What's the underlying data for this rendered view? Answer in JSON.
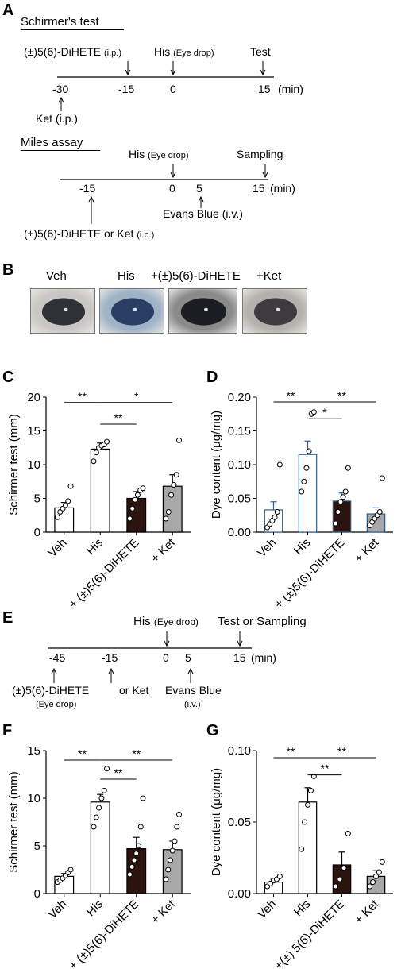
{
  "panel_letters": [
    "A",
    "B",
    "C",
    "D",
    "E",
    "F",
    "G"
  ],
  "panel_a": {
    "schirmer": {
      "heading": "Schirmer's test",
      "drug_label": "(±)5(6)-DiHETE",
      "drug_route": "(i.p.)",
      "his_label": "His",
      "his_route": "(Eye drop)",
      "test_label": "Test",
      "ticks": [
        "-30",
        "-15",
        "0",
        "15"
      ],
      "unit": "(min)",
      "ket_label": "Ket (i.p.)"
    },
    "miles": {
      "heading": "Miles assay",
      "his_label": "His",
      "his_route": "(Eye drop)",
      "sampling_label": "Sampling",
      "ticks": [
        "-15",
        "0",
        "5",
        "15"
      ],
      "unit": "(min)",
      "evans_label": "Evans Blue (i.v.)",
      "pretreat_label": "(±)5(6)-DiHETE or Ket",
      "pretreat_route": "(i.p.)"
    }
  },
  "panel_b": {
    "labels": [
      "Veh",
      "His",
      "+(±)5(6)-DiHETE",
      "+Ket"
    ],
    "eye_colors": {
      "veh_bg": "#c9c7c4",
      "veh_eye": "#303137",
      "his_bg": "#9fb3c6",
      "his_eye": "#2a3d63",
      "dihete_bg": "#8a8a8a",
      "dihete_eye": "#1c1d22",
      "ket_bg": "#b4b1ad",
      "ket_eye": "#3d3b40"
    }
  },
  "panel_e": {
    "his_label": "His",
    "his_route": "(Eye drop)",
    "test_label": "Test or Sampling",
    "ticks": [
      "-45",
      "-15",
      "0",
      "5",
      "15"
    ],
    "unit": "(min)",
    "drug_label": "(±)5(6)-DiHETE",
    "drug_route": "(Eye drop)",
    "or_ket": "or Ket",
    "evans_label": "Evans Blue",
    "evans_route": "(i.v.)"
  },
  "chart_data": [
    {
      "id": "C",
      "type": "bar",
      "ylabel": "Schirmer test (mm)",
      "categories": [
        "Veh",
        "His",
        "+ (±)5(6)-DiHETE",
        "+ Ket"
      ],
      "yticks": [
        "0",
        "5",
        "10",
        "15",
        "20"
      ],
      "ylim": [
        0,
        20
      ],
      "values": [
        3.6,
        12.3,
        5.0,
        6.8
      ],
      "sem": [
        0.8,
        0.9,
        1.0,
        1.7
      ],
      "points": [
        [
          2.2,
          3.0,
          3.5,
          4.0,
          4.6,
          6.8
        ],
        [
          10.5,
          11.8,
          12.5,
          12.8,
          13.0,
          13.4
        ],
        [
          2.0,
          3.5,
          4.8,
          5.5,
          6.2,
          6.5
        ],
        [
          2.0,
          3.0,
          5.5,
          7.0,
          8.5,
          13.6
        ]
      ],
      "bar_colors": [
        "#ffffff",
        "#ffffff",
        "#2b1410",
        "#a8a8a8"
      ],
      "bar_edges": [
        "#000000",
        "#000000",
        "#000000",
        "#000000"
      ],
      "significance": [
        {
          "from": 0,
          "to": 1,
          "label": "**",
          "y": 19.2
        },
        {
          "from": 1,
          "to": 3,
          "label": "*",
          "y": 19.2
        },
        {
          "from": 1,
          "to": 2,
          "label": "**",
          "y": 16.0
        }
      ]
    },
    {
      "id": "D",
      "type": "bar",
      "ylabel": "Dye content (μg/mg)",
      "categories": [
        "Veh",
        "His",
        "+ (±)5(6)-DiHETE",
        "+ Ket"
      ],
      "yticks": [
        "0.00",
        "0.05",
        "0.10",
        "0.15",
        "0.20"
      ],
      "ylim": [
        0,
        0.2
      ],
      "values": [
        0.033,
        0.115,
        0.046,
        0.027
      ],
      "sem": [
        0.012,
        0.02,
        0.012,
        0.009
      ],
      "points": [
        [
          0.007,
          0.012,
          0.017,
          0.022,
          0.03,
          0.1
        ],
        [
          0.06,
          0.075,
          0.095,
          0.12,
          0.175,
          0.178
        ],
        [
          0.013,
          0.03,
          0.045,
          0.052,
          0.06,
          0.095
        ],
        [
          0.01,
          0.015,
          0.02,
          0.025,
          0.03,
          0.08
        ]
      ],
      "bar_colors": [
        "#ffffff",
        "#ffffff",
        "#2b1410",
        "#a8a8a8"
      ],
      "bar_edges": [
        "#2e5d8e",
        "#2e5d8e",
        "#2e5d8e",
        "#2e5d8e"
      ],
      "significance": [
        {
          "from": 0,
          "to": 1,
          "label": "**",
          "y": 0.193
        },
        {
          "from": 1,
          "to": 3,
          "label": "**",
          "y": 0.193
        },
        {
          "from": 1,
          "to": 2,
          "label": "*",
          "y": 0.168
        }
      ]
    },
    {
      "id": "F",
      "type": "bar",
      "ylabel": "Schirmer test (mm)",
      "categories": [
        "Veh",
        "His",
        "+ (±)5(6)-DiHETE",
        "+ Ket"
      ],
      "yticks": [
        "0",
        "5",
        "10",
        "15"
      ],
      "ylim": [
        0,
        15
      ],
      "values": [
        1.8,
        9.6,
        4.7,
        4.6
      ],
      "sem": [
        0.3,
        0.8,
        1.2,
        0.9
      ],
      "points": [
        [
          1.2,
          1.4,
          1.6,
          1.9,
          2.2,
          2.5
        ],
        [
          7.0,
          8.0,
          9.0,
          10.0,
          10.8,
          13.1
        ],
        [
          2.0,
          2.8,
          3.5,
          4.2,
          5.0,
          7.0,
          10.0
        ],
        [
          1.5,
          2.5,
          3.5,
          4.5,
          5.5,
          7.0,
          8.3
        ]
      ],
      "bar_colors": [
        "#ffffff",
        "#ffffff",
        "#2b1410",
        "#a8a8a8"
      ],
      "bar_edges": [
        "#000000",
        "#000000",
        "#000000",
        "#000000"
      ],
      "significance": [
        {
          "from": 0,
          "to": 1,
          "label": "**",
          "y": 14.0
        },
        {
          "from": 1,
          "to": 3,
          "label": "**",
          "y": 14.0
        },
        {
          "from": 1,
          "to": 2,
          "label": "**",
          "y": 12.0
        }
      ]
    },
    {
      "id": "G",
      "type": "bar",
      "ylabel": "Dye content (μg/mg)",
      "categories": [
        "Veh",
        "His",
        "+(±) 5(6)-DiHETE",
        "+ Ket"
      ],
      "yticks": [
        "0.00",
        "0.05",
        "0.10"
      ],
      "ylim": [
        0,
        0.1
      ],
      "values": [
        0.008,
        0.064,
        0.02,
        0.012
      ],
      "sem": [
        0.002,
        0.01,
        0.009,
        0.004
      ],
      "points": [
        [
          0.005,
          0.007,
          0.009,
          0.01,
          0.012
        ],
        [
          0.031,
          0.05,
          0.062,
          0.072,
          0.082
        ],
        [
          0.005,
          0.01,
          0.018,
          0.042
        ],
        [
          0.005,
          0.008,
          0.012,
          0.015,
          0.022
        ]
      ],
      "bar_colors": [
        "#ffffff",
        "#ffffff",
        "#2b1410",
        "#a8a8a8"
      ],
      "bar_edges": [
        "#000000",
        "#000000",
        "#000000",
        "#000000"
      ],
      "significance": [
        {
          "from": 0,
          "to": 1,
          "label": "**",
          "y": 0.095
        },
        {
          "from": 1,
          "to": 3,
          "label": "**",
          "y": 0.095
        },
        {
          "from": 1,
          "to": 2,
          "label": "**",
          "y": 0.083
        }
      ]
    }
  ]
}
